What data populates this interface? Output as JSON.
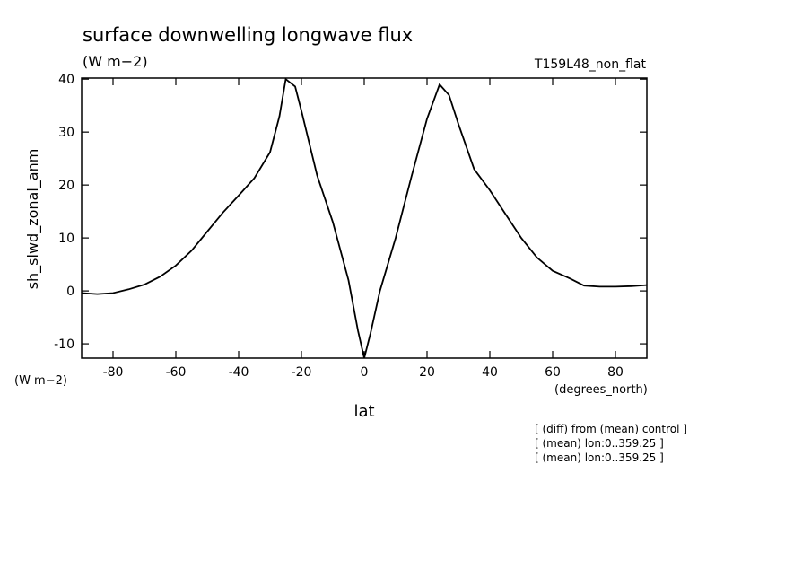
{
  "chart_data": {
    "type": "line",
    "title": "surface downwelling longwave flux",
    "subtitle": "(W m−2)",
    "run_label": "T159L48_non_flat",
    "ylabel": "sh_slwd_zonal_anm",
    "yunits": "(W m−2)",
    "xunits": "(degrees_north)",
    "xlabel": "lat",
    "notes": [
      "[ (diff) from (mean) control ]",
      "[ (mean) lon:0..359.25 ]",
      "[ (mean) lon:0..359.25 ]"
    ],
    "xlim": [
      -90,
      90
    ],
    "ylim": [
      -12.7,
      40.2
    ],
    "xticks": [
      -80,
      -60,
      -40,
      -20,
      0,
      20,
      40,
      60,
      80
    ],
    "yticks": [
      -10,
      0,
      10,
      20,
      30,
      40
    ],
    "x": [
      -90,
      -85,
      -80,
      -75,
      -70,
      -65,
      -60,
      -55,
      -50,
      -45,
      -40,
      -35,
      -30,
      -27,
      -25,
      -22,
      -20,
      -15,
      -10,
      -5,
      -2,
      0,
      2,
      5,
      10,
      15,
      20,
      24,
      27,
      30,
      35,
      40,
      45,
      50,
      55,
      60,
      65,
      70,
      75,
      80,
      85,
      90
    ],
    "series": [
      {
        "name": "sh_slwd_zonal_anm",
        "color": "#000000",
        "values": [
          -0.4,
          -0.6,
          -0.4,
          0.3,
          1.2,
          2.7,
          4.8,
          7.6,
          11.2,
          14.8,
          18.0,
          21.3,
          26.2,
          33.0,
          40.0,
          38.6,
          34.0,
          21.8,
          13.0,
          2.0,
          -7.5,
          -12.7,
          -8.0,
          0.0,
          10.0,
          21.5,
          32.5,
          39.0,
          37.0,
          31.5,
          23.0,
          19.0,
          14.5,
          10.0,
          6.3,
          3.8,
          2.5,
          1.0,
          0.8,
          0.8,
          0.9,
          1.1
        ]
      }
    ]
  }
}
